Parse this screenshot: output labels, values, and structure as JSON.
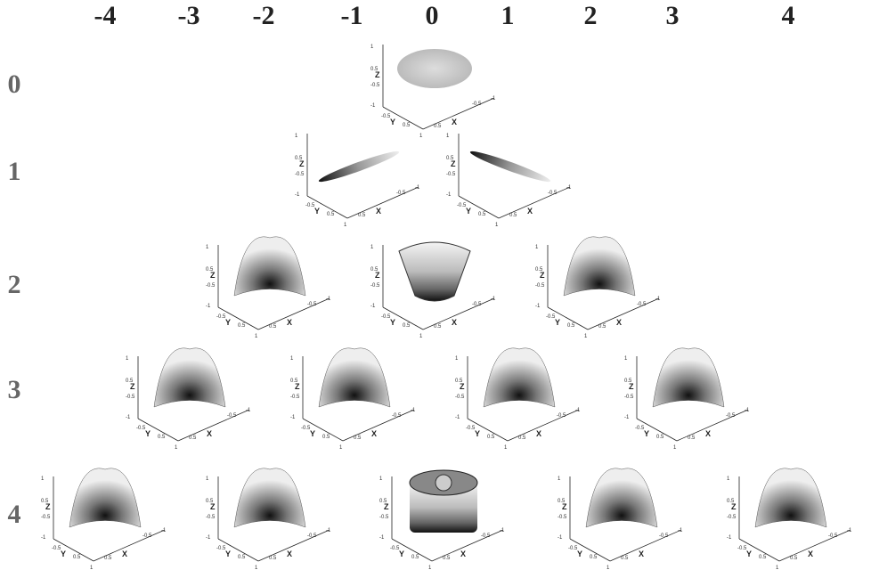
{
  "columns": [
    "-4",
    "-3",
    "-2",
    "-1",
    "0",
    "1",
    "2",
    "3",
    "4"
  ],
  "rows": [
    "0",
    "1",
    "2",
    "3",
    "4"
  ],
  "axis": {
    "x": "X",
    "y": "Y",
    "z": "Z",
    "ticks": [
      "-1",
      "-0.5",
      "0",
      "0.5",
      "1"
    ]
  }
}
